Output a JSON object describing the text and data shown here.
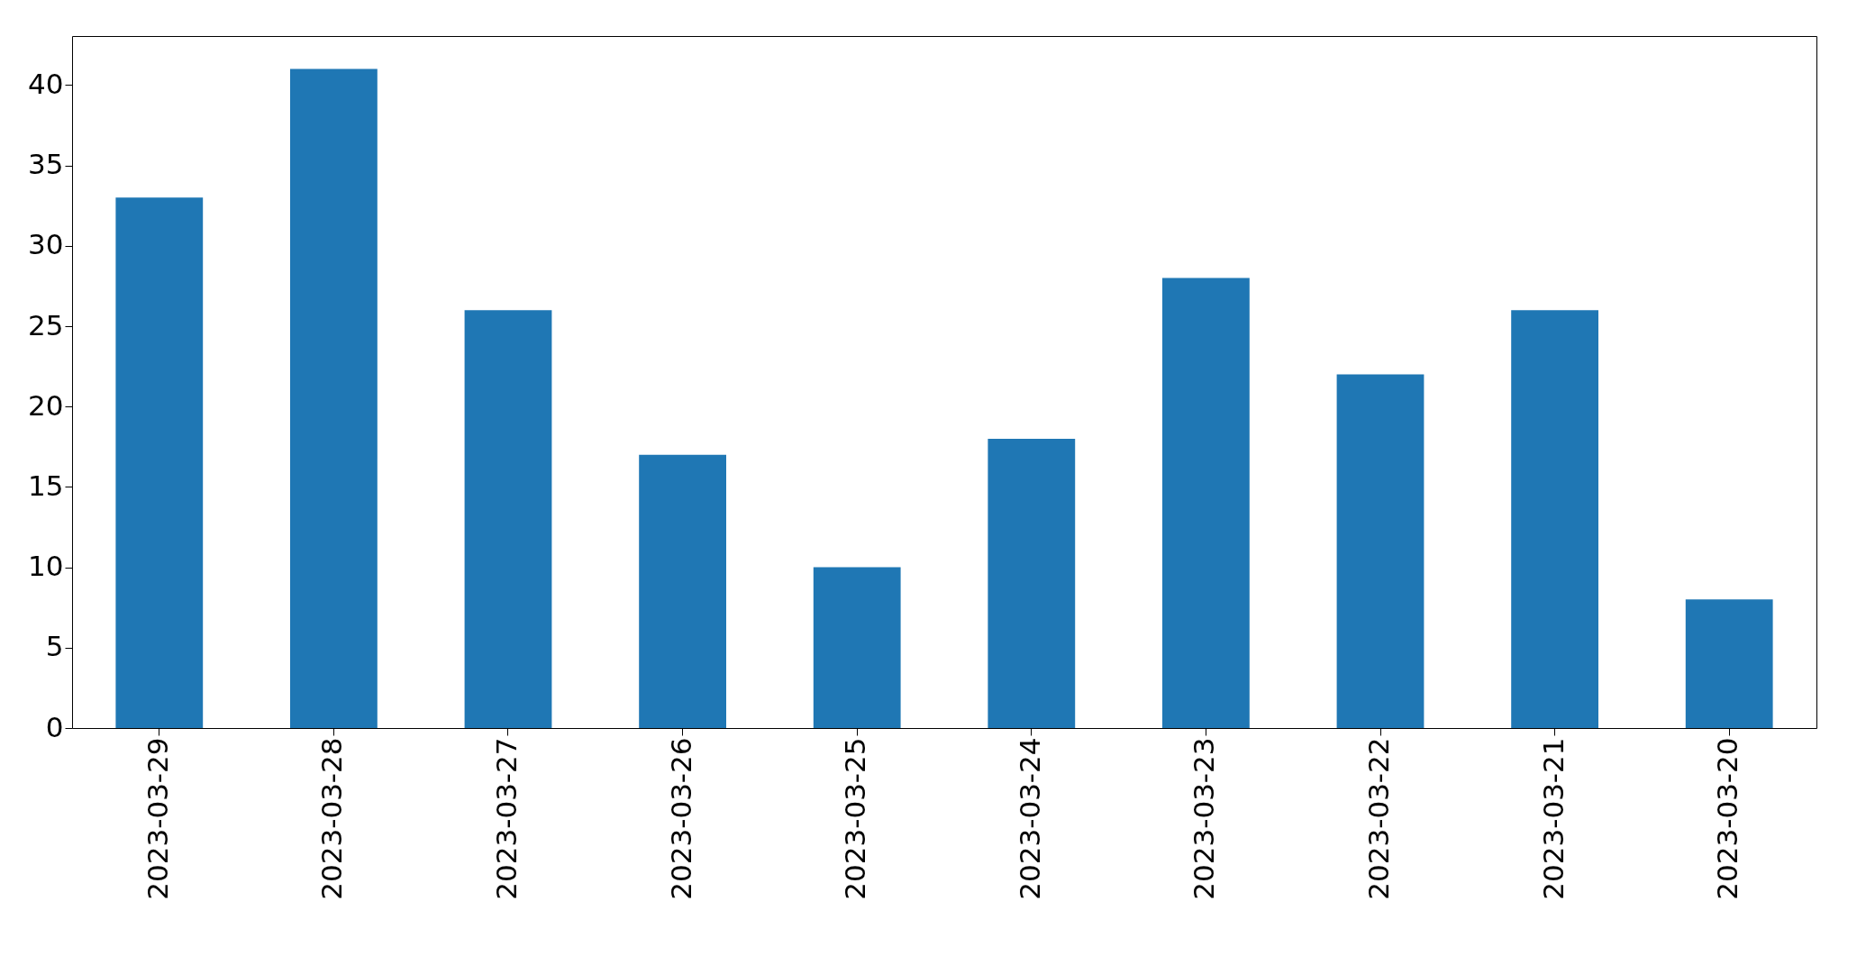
{
  "chart_data": {
    "type": "bar",
    "categories": [
      "2023-03-29",
      "2023-03-28",
      "2023-03-27",
      "2023-03-26",
      "2023-03-25",
      "2023-03-24",
      "2023-03-23",
      "2023-03-22",
      "2023-03-21",
      "2023-03-20"
    ],
    "values": [
      33,
      41,
      26,
      17,
      10,
      18,
      28,
      22,
      26,
      8
    ],
    "color": "#1f77b4",
    "ylim": [
      0,
      43.05
    ],
    "yticks": [
      0,
      5,
      10,
      15,
      20,
      25,
      30,
      35,
      40
    ],
    "grid": false
  }
}
